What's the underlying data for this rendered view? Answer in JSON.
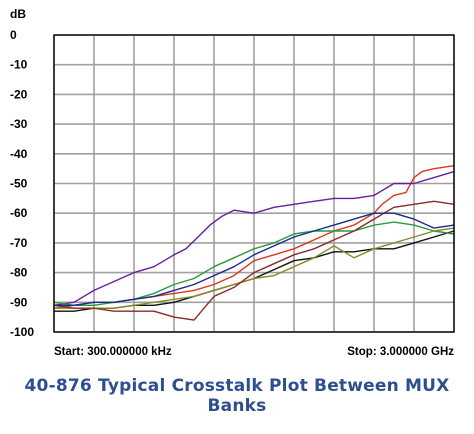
{
  "caption": "40-876 Typical Crosstalk Plot Between MUX Banks",
  "chart_data": {
    "type": "line",
    "title": "",
    "ylabel": "dB",
    "ylim": [
      -100,
      0
    ],
    "yticks": [
      0,
      -10,
      -20,
      -30,
      -40,
      -50,
      -60,
      -70,
      -80,
      -90,
      -100
    ],
    "xlim": [
      0,
      1
    ],
    "x_vertical_gridlines": 10,
    "grid": true,
    "start_label": "Start: 300.000000 kHz",
    "stop_label": "Stop: 3.000000 GHz",
    "series": [
      {
        "color": "#d63a1e",
        "x": [
          0.0,
          0.05,
          0.1,
          0.15,
          0.2,
          0.25,
          0.3,
          0.35,
          0.4,
          0.45,
          0.5,
          0.55,
          0.6,
          0.65,
          0.7,
          0.75,
          0.8,
          0.82,
          0.85,
          0.88,
          0.9,
          0.92,
          0.95,
          1.0
        ],
        "y": [
          -92,
          -91,
          -90,
          -90,
          -89,
          -88,
          -87,
          -86,
          -84,
          -81,
          -76,
          -74,
          -72,
          -69,
          -66,
          -64,
          -60,
          -57,
          -54,
          -53,
          -48,
          -46,
          -45,
          -44
        ]
      },
      {
        "color": "#6a1e9c",
        "x": [
          0.0,
          0.05,
          0.1,
          0.15,
          0.2,
          0.25,
          0.3,
          0.33,
          0.36,
          0.39,
          0.42,
          0.45,
          0.5,
          0.55,
          0.6,
          0.65,
          0.7,
          0.75,
          0.8,
          0.85,
          0.9,
          0.95,
          1.0
        ],
        "y": [
          -91,
          -90,
          -86,
          -83,
          -80,
          -78,
          -74,
          -72,
          -68,
          -64,
          -61,
          -59,
          -60,
          -58,
          -57,
          -56,
          -55,
          -55,
          -54,
          -50,
          -50,
          -48,
          -46
        ]
      },
      {
        "color": "#111111",
        "x": [
          0.0,
          0.05,
          0.1,
          0.15,
          0.2,
          0.25,
          0.3,
          0.35,
          0.4,
          0.45,
          0.5,
          0.55,
          0.6,
          0.65,
          0.7,
          0.75,
          0.8,
          0.85,
          0.9,
          0.95,
          1.0
        ],
        "y": [
          -93,
          -93,
          -92,
          -92,
          -91,
          -91,
          -90,
          -88,
          -86,
          -84,
          -82,
          -79,
          -76,
          -75,
          -73,
          -73,
          -72,
          -72,
          -70,
          -68,
          -66
        ]
      },
      {
        "color": "#2a9a3c",
        "x": [
          0.0,
          0.05,
          0.1,
          0.15,
          0.2,
          0.25,
          0.3,
          0.35,
          0.4,
          0.45,
          0.5,
          0.55,
          0.6,
          0.65,
          0.7,
          0.75,
          0.8,
          0.85,
          0.9,
          0.95,
          1.0
        ],
        "y": [
          -90,
          -91,
          -91,
          -90,
          -89,
          -87,
          -84,
          -82,
          -78,
          -75,
          -72,
          -70,
          -67,
          -66,
          -66,
          -66,
          -64,
          -63,
          -64,
          -66,
          -67
        ]
      },
      {
        "color": "#8b8b2a",
        "x": [
          0.0,
          0.05,
          0.1,
          0.15,
          0.2,
          0.25,
          0.3,
          0.35,
          0.4,
          0.45,
          0.5,
          0.55,
          0.6,
          0.65,
          0.7,
          0.75,
          0.8,
          0.85,
          0.9,
          0.95,
          1.0
        ],
        "y": [
          -92,
          -92,
          -92,
          -92,
          -91,
          -90,
          -89,
          -88,
          -86,
          -84,
          -82,
          -81,
          -78,
          -75,
          -71,
          -75,
          -72,
          -70,
          -68,
          -66,
          -65
        ]
      },
      {
        "color": "#8b2a2a",
        "x": [
          0.0,
          0.05,
          0.1,
          0.15,
          0.2,
          0.25,
          0.3,
          0.35,
          0.4,
          0.45,
          0.5,
          0.55,
          0.6,
          0.65,
          0.7,
          0.75,
          0.8,
          0.85,
          0.9,
          0.95,
          1.0
        ],
        "y": [
          -91,
          -92,
          -92,
          -93,
          -93,
          -93,
          -95,
          -96,
          -88,
          -85,
          -80,
          -77,
          -74,
          -72,
          -69,
          -66,
          -62,
          -58,
          -57,
          -56,
          -57
        ]
      },
      {
        "color": "#1a2a8a",
        "x": [
          0.0,
          0.05,
          0.1,
          0.15,
          0.2,
          0.25,
          0.3,
          0.35,
          0.4,
          0.45,
          0.5,
          0.55,
          0.6,
          0.65,
          0.7,
          0.75,
          0.8,
          0.85,
          0.9,
          0.95,
          1.0
        ],
        "y": [
          -91,
          -91,
          -90,
          -90,
          -89,
          -88,
          -86,
          -84,
          -81,
          -78,
          -74,
          -71,
          -68,
          -66,
          -64,
          -62,
          -60,
          -60,
          -62,
          -65,
          -64
        ]
      }
    ]
  }
}
